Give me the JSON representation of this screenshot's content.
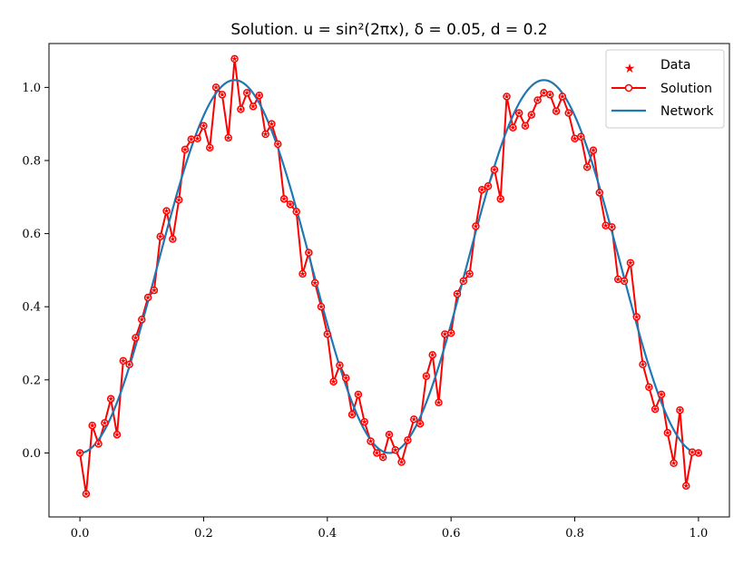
{
  "chart_data": {
    "type": "line",
    "title": "Solution. u = sin²(2πx), δ = 0.05, d = 0.2",
    "xlabel": "",
    "ylabel": "",
    "xlim": [
      -0.05,
      1.05
    ],
    "ylim": [
      -0.175,
      1.12
    ],
    "xticks": [
      0.0,
      0.2,
      0.4,
      0.6,
      0.8,
      1.0
    ],
    "yticks": [
      0.0,
      0.2,
      0.4,
      0.6,
      0.8,
      1.0
    ],
    "xtick_labels": [
      "0.0",
      "0.2",
      "0.4",
      "0.6",
      "0.8",
      "1.0"
    ],
    "ytick_labels": [
      "0.0",
      "0.2",
      "0.4",
      "0.6",
      "0.8",
      "1.0"
    ],
    "grid": false,
    "legend_position": "top-right",
    "legend": [
      "Data",
      "Solution",
      "Network"
    ],
    "series": [
      {
        "name": "Data",
        "marker": "star",
        "color": "#ff0000",
        "x": [
          0.0,
          0.01,
          0.02,
          0.03,
          0.04,
          0.05,
          0.06,
          0.07,
          0.08,
          0.09,
          0.1,
          0.11,
          0.12,
          0.13,
          0.14,
          0.15,
          0.16,
          0.17,
          0.18,
          0.19,
          0.2,
          0.21,
          0.22,
          0.23,
          0.24,
          0.25,
          0.26,
          0.27,
          0.28,
          0.29,
          0.3,
          0.31,
          0.32,
          0.33,
          0.34,
          0.35,
          0.36,
          0.37,
          0.38,
          0.39,
          0.4,
          0.41,
          0.42,
          0.43,
          0.44,
          0.45,
          0.46,
          0.47,
          0.48,
          0.49,
          0.5,
          0.51,
          0.52,
          0.53,
          0.54,
          0.55,
          0.56,
          0.57,
          0.58,
          0.59,
          0.6,
          0.61,
          0.62,
          0.63,
          0.64,
          0.65,
          0.66,
          0.67,
          0.68,
          0.69,
          0.7,
          0.71,
          0.72,
          0.73,
          0.74,
          0.75,
          0.76,
          0.77,
          0.78,
          0.79,
          0.8,
          0.81,
          0.82,
          0.83,
          0.84,
          0.85,
          0.86,
          0.87,
          0.88,
          0.89,
          0.9,
          0.91,
          0.92,
          0.93,
          0.94,
          0.95,
          0.96,
          0.97,
          0.98,
          0.99,
          1.0
        ],
        "y": [
          0.0,
          -0.112,
          0.075,
          0.025,
          0.082,
          0.148,
          0.05,
          0.252,
          0.242,
          0.315,
          0.365,
          0.425,
          0.445,
          0.592,
          0.662,
          0.585,
          0.692,
          0.83,
          0.858,
          0.86,
          0.895,
          0.835,
          1.0,
          0.98,
          0.862,
          1.078,
          0.94,
          0.985,
          0.948,
          0.978,
          0.872,
          0.9,
          0.845,
          0.695,
          0.68,
          0.66,
          0.49,
          0.548,
          0.465,
          0.4,
          0.325,
          0.195,
          0.24,
          0.205,
          0.105,
          0.16,
          0.085,
          0.032,
          0.0,
          -0.012,
          0.05,
          0.008,
          -0.025,
          0.035,
          0.092,
          0.08,
          0.21,
          0.268,
          0.138,
          0.325,
          0.328,
          0.435,
          0.47,
          0.49,
          0.62,
          0.72,
          0.73,
          0.775,
          0.695,
          0.975,
          0.89,
          0.93,
          0.895,
          0.925,
          0.965,
          0.985,
          0.98,
          0.935,
          0.975,
          0.93,
          0.86,
          0.865,
          0.782,
          0.828,
          0.712,
          0.622,
          0.618,
          0.475,
          0.47,
          0.52,
          0.372,
          0.242,
          0.18,
          0.12,
          0.16,
          0.055,
          -0.028,
          0.117,
          -0.09,
          0.002,
          0.0
        ]
      },
      {
        "name": "Solution",
        "marker": "circle",
        "color": "#ff0000",
        "same_points_as": "Data"
      },
      {
        "name": "Network",
        "marker": "none",
        "color": "#1f77b4",
        "function": "sin^2(2*pi*x)",
        "peak_value": 1.02
      }
    ]
  }
}
